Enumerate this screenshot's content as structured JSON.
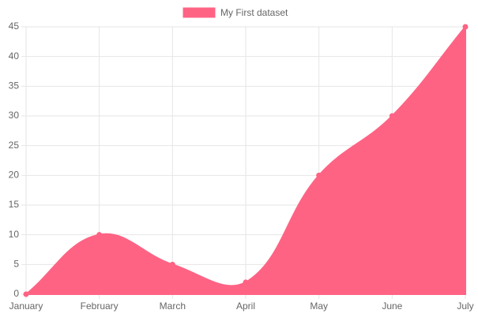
{
  "chart_data": {
    "type": "area",
    "categories": [
      "January",
      "February",
      "March",
      "April",
      "May",
      "June",
      "July"
    ],
    "series": [
      {
        "name": "My First dataset",
        "color": "#ff6384",
        "values": [
          0,
          10,
          5,
          2,
          20,
          30,
          45
        ]
      }
    ],
    "ylim": [
      0,
      45
    ],
    "yticks": [
      0,
      5,
      10,
      15,
      20,
      25,
      30,
      35,
      40,
      45
    ],
    "grid": true,
    "legend": "top"
  }
}
